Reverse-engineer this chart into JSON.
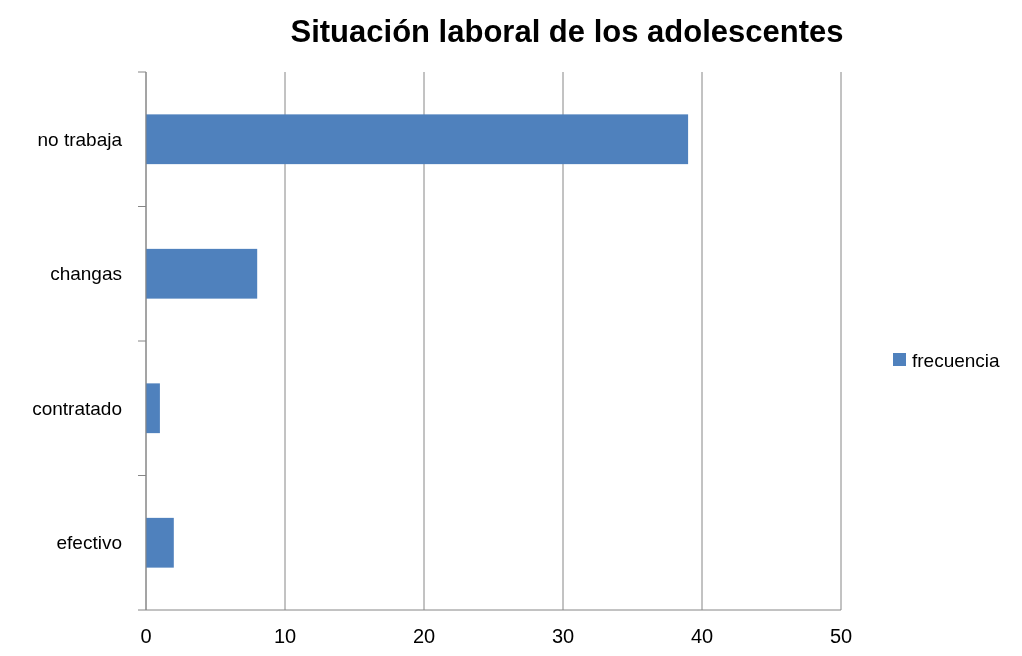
{
  "chart_data": {
    "type": "bar",
    "orientation": "horizontal",
    "title": "Situación laboral de los adolescentes",
    "categories": [
      "no trabaja",
      "changas",
      "contratado",
      "efectivo"
    ],
    "series": [
      {
        "name": "frecuencia",
        "color": "#4f81bd",
        "values": [
          39,
          8,
          1,
          2
        ]
      }
    ],
    "xlim": [
      0,
      50
    ],
    "xticks": [
      0,
      10,
      20,
      30,
      40,
      50
    ],
    "grid": "x",
    "legend": "right"
  }
}
